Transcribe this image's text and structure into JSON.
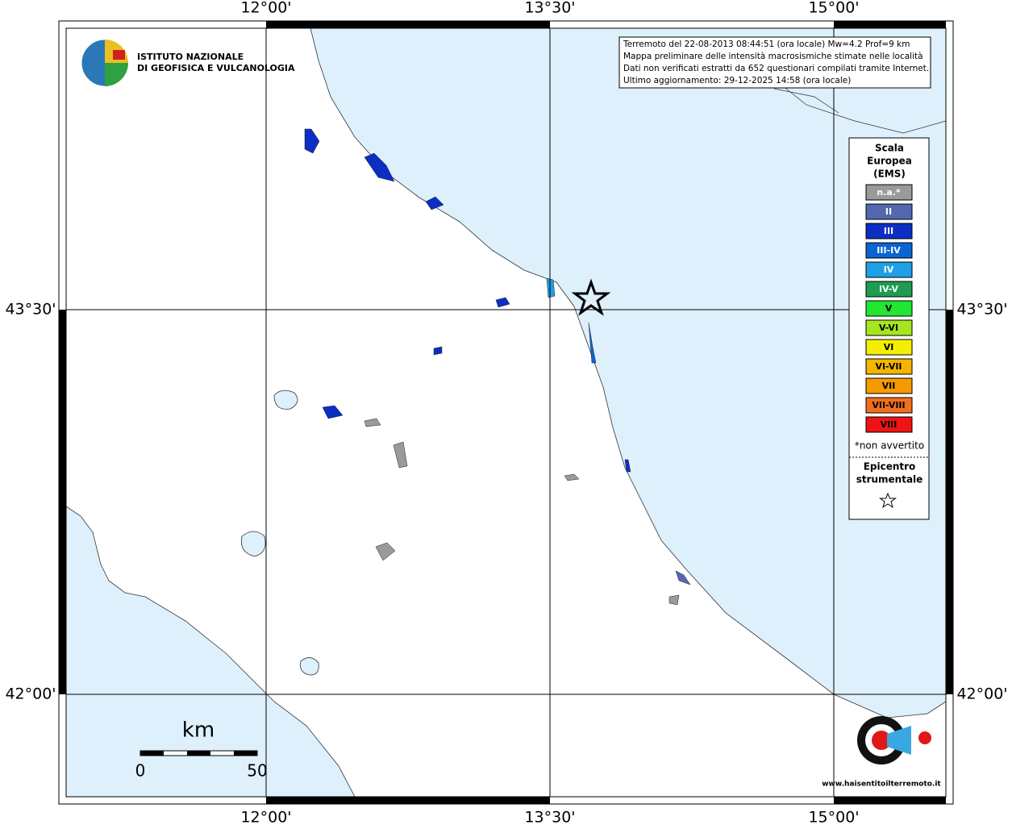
{
  "map": {
    "grid_labels": {
      "top": [
        "12°00'",
        "13°30'",
        "15°00'"
      ],
      "bottom": [
        "12°00'",
        "13°30'",
        "15°00'"
      ],
      "left": [
        "43°30'",
        "42°00'"
      ],
      "right": [
        "43°30'",
        "42°00'"
      ]
    },
    "institute": [
      "ISTITUTO NAZIONALE",
      "DI GEOFISICA E VULCANOLOGIA"
    ],
    "info_box": [
      "Terremoto del 22-08-2013 08:44:51 (ora locale) Mw=4.2 Prof=9 km",
      "Mappa preliminare delle intensità macrosismiche stimate nelle località",
      "Dati non verificati estratti da 652 questionari compilati tramite Internet.",
      "Ultimo aggiornamento: 29-12-2025 14:58 (ora locale)"
    ],
    "legend": {
      "title": [
        "Scala",
        "Europea",
        "(EMS)"
      ],
      "classes": [
        {
          "label": "n.a.*",
          "color": "#9a9a9a"
        },
        {
          "label": "II",
          "color": "#5468b0"
        },
        {
          "label": "III",
          "color": "#0b2fc4"
        },
        {
          "label": "III-IV",
          "color": "#0a64d2"
        },
        {
          "label": "IV",
          "color": "#1ea0e6"
        },
        {
          "label": "IV-V",
          "color": "#1e9c50"
        },
        {
          "label": "V",
          "color": "#22e632"
        },
        {
          "label": "V-VI",
          "color": "#a6e61e"
        },
        {
          "label": "VI",
          "color": "#f2f000"
        },
        {
          "label": "VI-VII",
          "color": "#f5b400"
        },
        {
          "label": "VII",
          "color": "#f59a00"
        },
        {
          "label": "VII-VIII",
          "color": "#f26e1e"
        },
        {
          "label": "VIII",
          "color": "#ee1414"
        }
      ],
      "note": "*non avvertito",
      "epicenter_title": [
        "Epicentro",
        "strumentale"
      ]
    },
    "scale_bar": {
      "unit": "km",
      "labels": [
        "0",
        "50"
      ]
    },
    "site": "www.haisentitoilterremoto.it"
  }
}
